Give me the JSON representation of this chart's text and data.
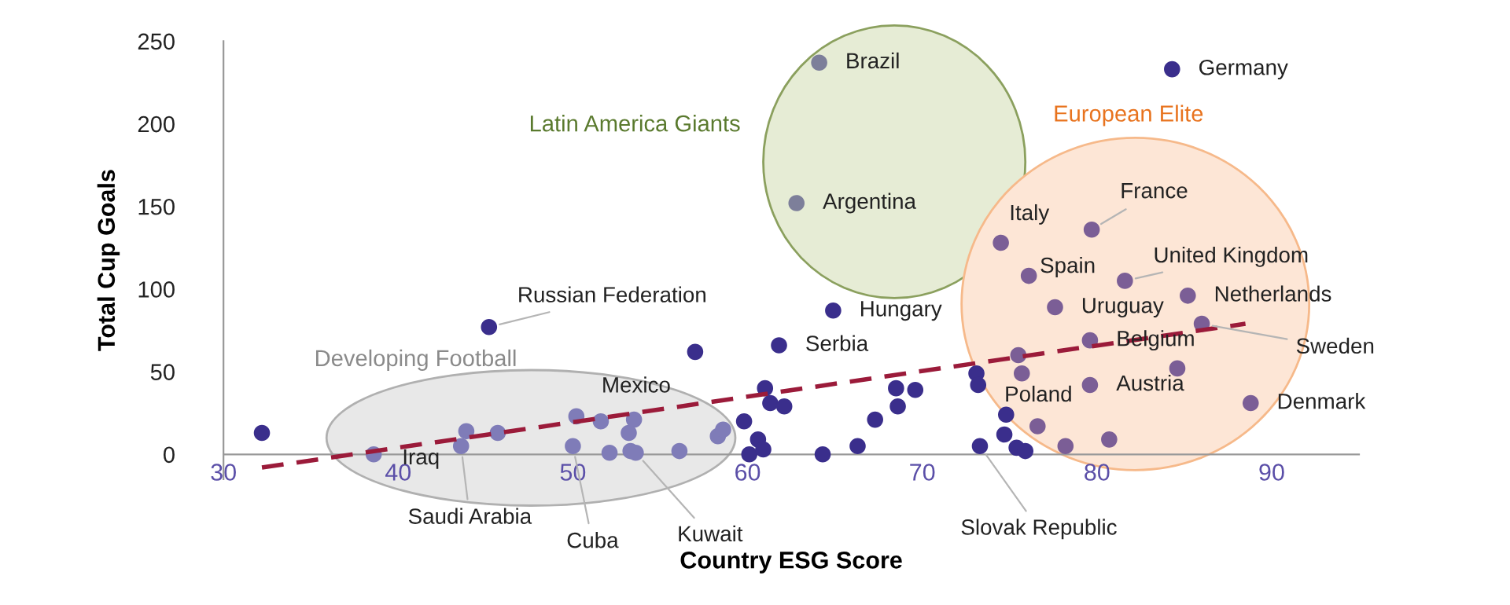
{
  "chart_data": {
    "type": "scatter",
    "xlabel": "Country ESG Score",
    "ylabel": "Total Cup Goals",
    "xlim": [
      30,
      95
    ],
    "xticks": [
      30,
      40,
      50,
      60,
      70,
      80,
      90
    ],
    "ylim": [
      -15,
      250
    ],
    "yticks": [
      0,
      50,
      100,
      150,
      200,
      250
    ],
    "grid": false,
    "legend": false,
    "marker": "circle",
    "series": [
      {
        "color": "#3a2e8c",
        "x": [
          32.2,
          45.2,
          57.0,
          64.9,
          61.8,
          59.8,
          60.1,
          60.6,
          60.9,
          61.0,
          61.3,
          62.1,
          64.3,
          66.3,
          67.3,
          68.5,
          68.6,
          69.6,
          73.1,
          73.2,
          73.3,
          74.8,
          74.7,
          75.4,
          75.9,
          84.3
        ],
        "values": [
          13,
          77,
          62,
          87,
          66,
          20,
          0,
          9,
          3,
          40,
          31,
          29,
          0,
          5,
          21,
          40,
          29,
          39,
          49,
          42,
          5,
          24,
          12,
          4,
          2,
          233
        ]
      },
      {
        "color": "#7d7f9a",
        "x": [
          64.1,
          62.8
        ],
        "values": [
          237,
          152
        ]
      },
      {
        "color": "#7b5e96",
        "x": [
          74.5,
          79.7,
          76.1,
          81.6,
          85.2,
          77.6,
          86.0,
          79.6,
          75.5,
          75.7,
          84.6,
          79.6,
          88.8,
          76.6,
          78.2,
          80.7
        ],
        "values": [
          128,
          136,
          108,
          105,
          96,
          89,
          79,
          69,
          60,
          49,
          52,
          42,
          31,
          17,
          5,
          9
        ]
      },
      {
        "color": "#7f7cb8",
        "x": [
          38.6,
          43.9,
          43.6,
          45.7,
          50.2,
          50.0,
          51.6,
          53.5,
          53.2,
          52.1,
          53.3,
          53.6,
          56.1,
          58.3,
          58.6
        ],
        "values": [
          0,
          14,
          5,
          13,
          23,
          5,
          20,
          21,
          13,
          1,
          2,
          1,
          2,
          11,
          15
        ]
      },
      {
        "type": "line",
        "color": "#9b1b3a",
        "line_style": "dashed",
        "marker": "none",
        "x": [
          32.2,
          88.5
        ],
        "values": [
          -8,
          79
        ]
      }
    ],
    "annotations": [
      "Latin America Giants",
      "European Elite",
      "Developing Football",
      {
        "text": "Russian Federation",
        "x": 45.2,
        "y": 77
      },
      {
        "text": "Mexico",
        "x": 57.0,
        "y": 62
      },
      {
        "text": "Iraq",
        "x": 38.6,
        "y": 0
      },
      {
        "text": "Saudi Arabia",
        "x": 43.6,
        "y": 5
      },
      {
        "text": "Cuba",
        "x": 50.0,
        "y": 5
      },
      {
        "text": "Kuwait",
        "x": 53.6,
        "y": 1
      },
      {
        "text": "Hungary",
        "x": 64.9,
        "y": 87
      },
      {
        "text": "Serbia",
        "x": 61.8,
        "y": 66
      },
      {
        "text": "Slovak Republic",
        "x": 73.3,
        "y": 5
      },
      {
        "text": "Poland",
        "x": 73.2,
        "y": 42
      },
      {
        "text": "Brazil",
        "x": 64.1,
        "y": 237
      },
      {
        "text": "Argentina",
        "x": 62.8,
        "y": 152
      },
      {
        "text": "Germany",
        "x": 84.3,
        "y": 233
      },
      {
        "text": "Italy",
        "x": 74.5,
        "y": 128
      },
      {
        "text": "France",
        "x": 79.7,
        "y": 136
      },
      {
        "text": "Spain",
        "x": 76.1,
        "y": 108
      },
      {
        "text": "United Kingdom",
        "x": 81.6,
        "y": 105
      },
      {
        "text": "Netherlands",
        "x": 85.2,
        "y": 96
      },
      {
        "text": "Uruguay",
        "x": 77.6,
        "y": 89
      },
      {
        "text": "Sweden",
        "x": 86.0,
        "y": 79
      },
      {
        "text": "Belgium",
        "x": 79.6,
        "y": 69
      },
      {
        "text": "Austria",
        "x": 79.6,
        "y": 42
      },
      {
        "text": "Denmark",
        "x": 88.8,
        "y": 31
      }
    ]
  }
}
